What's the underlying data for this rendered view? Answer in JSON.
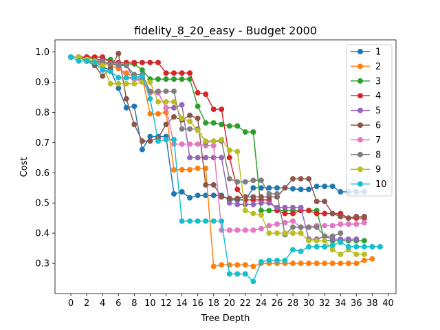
{
  "chart_data": {
    "type": "line",
    "title": "fidelity_8_20_easy - Budget  2000",
    "xlabel": "Tree Depth",
    "ylabel": "Cost",
    "xlim": [
      -2,
      41
    ],
    "ylim": [
      0.2,
      1.04
    ],
    "xticks": [
      0,
      2,
      4,
      6,
      8,
      10,
      12,
      14,
      16,
      18,
      20,
      22,
      24,
      26,
      28,
      30,
      32,
      34,
      36,
      38,
      40
    ],
    "xtick_labels": [
      "0",
      "2",
      "4",
      "6",
      "8",
      "10",
      "12",
      "14",
      "16",
      "18",
      "20",
      "22",
      "24",
      "26",
      "28",
      "30",
      "32",
      "34",
      "36",
      "38",
      "40"
    ],
    "yticks": [
      0.3,
      0.4,
      0.5,
      0.6,
      0.7,
      0.8,
      0.9,
      1.0
    ],
    "ytick_labels": [
      "0.3",
      "0.4",
      "0.5",
      "0.6",
      "0.7",
      "0.8",
      "0.9",
      "1.0"
    ],
    "grid": false,
    "legend_position": "top-right",
    "markers": "circle",
    "series": [
      {
        "name": "1",
        "color": "#1f77b4",
        "x": [
          0,
          1,
          2,
          3,
          4,
          5,
          6,
          7,
          8,
          9,
          10,
          11,
          12,
          13,
          14,
          15,
          16,
          17,
          18,
          19,
          20,
          21,
          22,
          23,
          24,
          25,
          26,
          27,
          28,
          29,
          30,
          31,
          32,
          33,
          34,
          35,
          36,
          37
        ],
        "y": [
          0.983,
          0.983,
          0.97,
          0.97,
          0.95,
          0.94,
          0.88,
          0.815,
          0.82,
          0.677,
          0.72,
          0.72,
          0.72,
          0.53,
          0.537,
          0.517,
          0.525,
          0.525,
          0.525,
          0.525,
          0.51,
          0.51,
          0.51,
          0.55,
          0.55,
          0.55,
          0.55,
          0.55,
          0.547,
          0.545,
          0.545,
          0.555,
          0.555,
          0.555,
          0.537,
          0.537,
          0.537,
          0.537
        ]
      },
      {
        "name": "2",
        "color": "#ff7f0e",
        "x": [
          0,
          1,
          2,
          3,
          4,
          5,
          6,
          7,
          8,
          9,
          10,
          11,
          12,
          13,
          14,
          15,
          16,
          17,
          18,
          19,
          20,
          21,
          22,
          23,
          24,
          25,
          26,
          27,
          28,
          29,
          30,
          31,
          32,
          33,
          34,
          35,
          36,
          37,
          38
        ],
        "y": [
          0.983,
          0.983,
          0.975,
          0.97,
          0.96,
          0.955,
          0.945,
          0.93,
          0.915,
          0.915,
          0.795,
          0.795,
          0.8,
          0.61,
          0.61,
          0.61,
          0.615,
          0.615,
          0.29,
          0.295,
          0.295,
          0.295,
          0.295,
          0.29,
          0.3,
          0.3,
          0.3,
          0.3,
          0.3,
          0.3,
          0.3,
          0.3,
          0.3,
          0.3,
          0.3,
          0.3,
          0.3,
          0.31,
          0.315
        ]
      },
      {
        "name": "3",
        "color": "#2ca02c",
        "x": [
          0,
          1,
          2,
          3,
          4,
          5,
          6,
          7,
          8,
          9,
          10,
          11,
          12,
          13,
          14,
          15,
          16,
          17,
          18,
          19,
          20,
          21,
          22,
          23,
          24,
          25,
          26,
          27,
          28,
          29,
          30,
          31,
          32,
          33,
          34,
          35,
          36,
          37
        ],
        "y": [
          0.983,
          0.983,
          0.983,
          0.975,
          0.975,
          0.975,
          0.96,
          0.96,
          0.96,
          0.94,
          0.91,
          0.91,
          0.91,
          0.91,
          0.91,
          0.91,
          0.82,
          0.765,
          0.765,
          0.76,
          0.755,
          0.755,
          0.735,
          0.735,
          0.475,
          0.475,
          0.475,
          0.475,
          0.475,
          0.475,
          0.475,
          0.475,
          0.375,
          0.375,
          0.375,
          0.375,
          0.375,
          0.375
        ]
      },
      {
        "name": "4",
        "color": "#d62728",
        "x": [
          0,
          1,
          2,
          3,
          4,
          5,
          6,
          7,
          8,
          9,
          10,
          11,
          12,
          13,
          14,
          15,
          16,
          17,
          18,
          19,
          20,
          21,
          22,
          23,
          24,
          25,
          26,
          27,
          28,
          29,
          30,
          31,
          32,
          33,
          34,
          35,
          36,
          37
        ],
        "y": [
          0.983,
          0.983,
          0.983,
          0.983,
          0.983,
          0.965,
          0.965,
          0.965,
          0.965,
          0.965,
          0.965,
          0.965,
          0.93,
          0.93,
          0.93,
          0.93,
          0.865,
          0.86,
          0.81,
          0.81,
          0.65,
          0.545,
          0.51,
          0.51,
          0.51,
          0.51,
          0.475,
          0.465,
          0.465,
          0.475,
          0.475,
          0.465,
          0.465,
          0.465,
          0.465,
          0.45,
          0.45,
          0.45
        ]
      },
      {
        "name": "5",
        "color": "#9467bd",
        "x": [
          0,
          1,
          2,
          3,
          4,
          5,
          6,
          7,
          8,
          9,
          10,
          11,
          12,
          13,
          14,
          15,
          16,
          17,
          18,
          19,
          20,
          21,
          22,
          23,
          24,
          25,
          26,
          27,
          28,
          29,
          30,
          31,
          32,
          33,
          34,
          35,
          36
        ],
        "y": [
          0.983,
          0.983,
          0.975,
          0.97,
          0.97,
          0.96,
          0.96,
          0.955,
          0.91,
          0.91,
          0.865,
          0.865,
          0.815,
          0.815,
          0.825,
          0.65,
          0.65,
          0.65,
          0.65,
          0.65,
          0.5,
          0.495,
          0.495,
          0.495,
          0.5,
          0.5,
          0.485,
          0.485,
          0.485,
          0.485,
          0.38,
          0.38,
          0.39,
          0.38,
          0.38,
          0.38,
          0.38
        ]
      },
      {
        "name": "6",
        "color": "#8c564b",
        "x": [
          0,
          1,
          2,
          3,
          4,
          5,
          6,
          7,
          8,
          9,
          10,
          11,
          12,
          13,
          14,
          15,
          16,
          17,
          18,
          19,
          20,
          21,
          22,
          23,
          24,
          25,
          26,
          27,
          28,
          29,
          30,
          31,
          32,
          33,
          34,
          35,
          36,
          37
        ],
        "y": [
          0.983,
          0.983,
          0.97,
          0.955,
          0.92,
          0.945,
          0.995,
          0.845,
          0.76,
          0.705,
          0.705,
          0.715,
          0.76,
          0.785,
          0.775,
          0.79,
          0.78,
          0.56,
          0.56,
          0.52,
          0.515,
          0.515,
          0.52,
          0.52,
          0.52,
          0.52,
          0.52,
          0.55,
          0.58,
          0.58,
          0.58,
          0.505,
          0.505,
          0.465,
          0.455,
          0.45,
          0.455,
          0.455
        ]
      },
      {
        "name": "7",
        "color": "#e377c2",
        "x": [
          0,
          1,
          2,
          3,
          4,
          5,
          6,
          7,
          8,
          9,
          10,
          11,
          12,
          13,
          14,
          15,
          16,
          17,
          18,
          19,
          20,
          21,
          22,
          23,
          24,
          25,
          26,
          27,
          28,
          29,
          30,
          31,
          32,
          33,
          34,
          35,
          36,
          37
        ],
        "y": [
          0.983,
          0.983,
          0.975,
          0.97,
          0.965,
          0.96,
          0.955,
          0.915,
          0.91,
          0.9,
          0.865,
          0.865,
          0.815,
          0.695,
          0.695,
          0.695,
          0.695,
          0.69,
          0.69,
          0.41,
          0.41,
          0.41,
          0.41,
          0.41,
          0.415,
          0.425,
          0.43,
          0.435,
          0.44,
          0.42,
          0.42,
          0.425,
          0.425,
          0.425,
          0.43,
          0.43,
          0.43,
          0.435
        ]
      },
      {
        "name": "8",
        "color": "#7f7f7f",
        "x": [
          0,
          1,
          2,
          3,
          4,
          5,
          6,
          7,
          8,
          9,
          10,
          11,
          12,
          13,
          14,
          15,
          16,
          17,
          18,
          19,
          20,
          21,
          22,
          23,
          24,
          25,
          26,
          27,
          28,
          29,
          30,
          31,
          32,
          33,
          34
        ],
        "y": [
          0.983,
          0.983,
          0.975,
          0.97,
          0.965,
          0.96,
          0.955,
          0.955,
          0.925,
          0.925,
          0.87,
          0.87,
          0.87,
          0.87,
          0.745,
          0.745,
          0.745,
          0.7,
          0.705,
          0.705,
          0.58,
          0.57,
          0.57,
          0.575,
          0.575,
          0.53,
          0.53,
          0.395,
          0.42,
          0.42,
          0.42,
          0.42,
          0.39,
          0.39,
          0.4
        ]
      },
      {
        "name": "9",
        "color": "#bcbd22",
        "x": [
          0,
          1,
          2,
          3,
          4,
          5,
          6,
          7,
          8,
          9,
          10,
          11,
          12,
          13,
          14,
          15,
          16,
          17,
          18,
          19,
          20,
          21,
          22,
          23,
          24,
          25,
          26,
          27,
          28,
          29,
          30,
          31,
          32,
          33,
          34,
          35,
          36,
          37
        ],
        "y": [
          0.983,
          0.983,
          0.975,
          0.97,
          0.955,
          0.895,
          0.895,
          0.895,
          0.895,
          0.9,
          0.9,
          0.835,
          0.835,
          0.835,
          0.78,
          0.77,
          0.74,
          0.705,
          0.705,
          0.71,
          0.675,
          0.67,
          0.475,
          0.465,
          0.46,
          0.4,
          0.4,
          0.4,
          0.4,
          0.4,
          0.375,
          0.375,
          0.375,
          0.345,
          0.33,
          0.345,
          0.33,
          0.33
        ]
      },
      {
        "name": "10",
        "color": "#17becf",
        "x": [
          0,
          1,
          2,
          3,
          4,
          5,
          6,
          7,
          8,
          9,
          10,
          11,
          12,
          13,
          14,
          15,
          16,
          17,
          18,
          19,
          20,
          21,
          22,
          23,
          24,
          25,
          26,
          27,
          28,
          29,
          30,
          31,
          32,
          33,
          34,
          35,
          36,
          37,
          38,
          39
        ],
        "y": [
          0.983,
          0.97,
          0.97,
          0.965,
          0.94,
          0.935,
          0.915,
          0.915,
          0.915,
          0.92,
          0.845,
          0.705,
          0.71,
          0.71,
          0.44,
          0.44,
          0.44,
          0.44,
          0.44,
          0.44,
          0.265,
          0.265,
          0.265,
          0.24,
          0.305,
          0.31,
          0.31,
          0.31,
          0.345,
          0.34,
          0.355,
          0.355,
          0.355,
          0.36,
          0.37,
          0.355,
          0.355,
          0.355,
          0.355,
          0.355
        ]
      }
    ]
  }
}
